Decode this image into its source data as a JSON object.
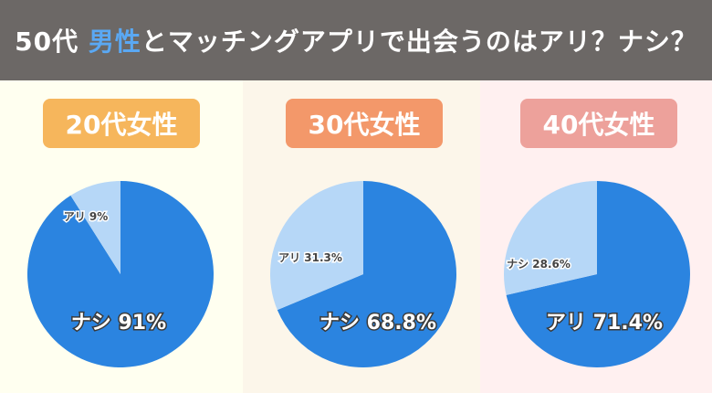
{
  "header": {
    "prefix": "50代",
    "accent": "男性",
    "suffix": "とマッチングアプリで出会うのはアリ？ナシ？"
  },
  "colors": {
    "header_bg": "#6c6866",
    "accent": "#5aa8f3",
    "pie_main": "#2b84e0",
    "pie_light": "#b6d7f7"
  },
  "chart_data": [
    {
      "type": "pie",
      "title": "20代女性",
      "badge_color": "#f6b65c",
      "panel_bg": "#fffff0",
      "slices": [
        {
          "name": "ナシ",
          "value": 91,
          "label": "ナシ 91%",
          "color": "#2b84e0"
        },
        {
          "name": "アリ",
          "value": 9,
          "label": "アリ 9%",
          "color": "#b6d7f7"
        }
      ]
    },
    {
      "type": "pie",
      "title": "30代女性",
      "badge_color": "#f3986a",
      "panel_bg": "#fcf6ea",
      "slices": [
        {
          "name": "ナシ",
          "value": 68.8,
          "label": "ナシ 68.8%",
          "color": "#2b84e0"
        },
        {
          "name": "アリ",
          "value": 31.3,
          "label": "アリ 31.3%",
          "color": "#b6d7f7"
        }
      ]
    },
    {
      "type": "pie",
      "title": "40代女性",
      "badge_color": "#eda19b",
      "panel_bg": "#fff0f0",
      "slices": [
        {
          "name": "アリ",
          "value": 71.4,
          "label": "アリ 71.4%",
          "color": "#2b84e0"
        },
        {
          "name": "ナシ",
          "value": 28.6,
          "label": "ナシ 28.6%",
          "color": "#b6d7f7"
        }
      ]
    }
  ]
}
